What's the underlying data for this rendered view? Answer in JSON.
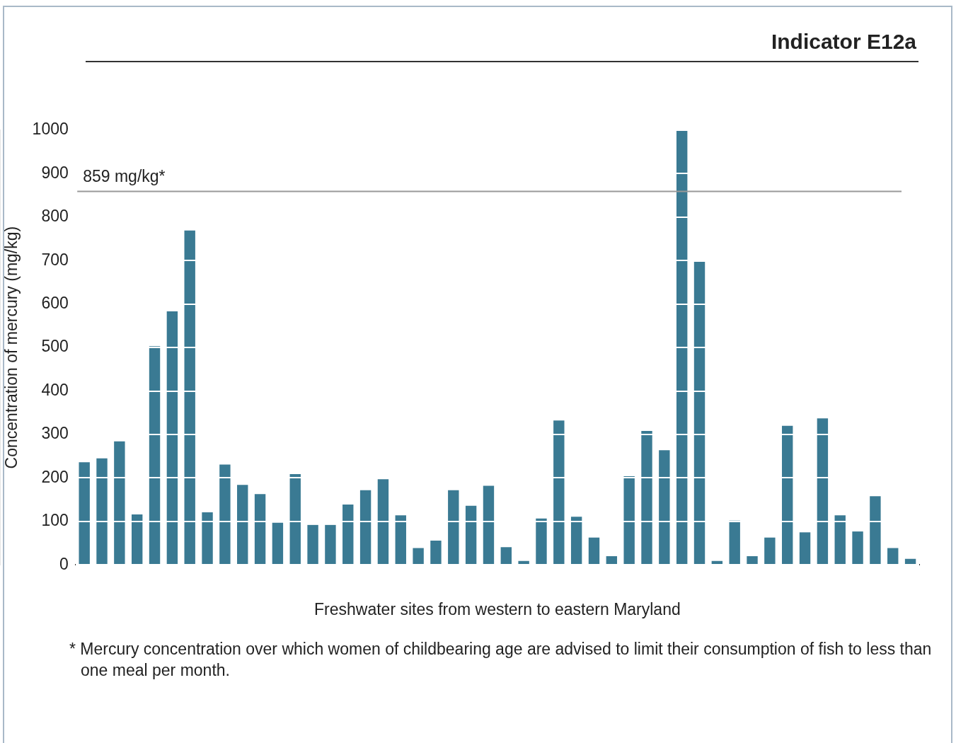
{
  "chart_data": {
    "type": "bar",
    "title": "Indicator E12a",
    "xlabel": "Freshwater sites from western to eastern Maryland",
    "ylabel": "Concentration of mercury (mg/kg)",
    "categories": [
      null,
      null,
      null,
      null,
      null,
      null,
      null,
      null,
      null,
      null,
      null,
      null,
      null,
      null,
      null,
      null,
      null,
      null,
      null,
      null,
      null,
      null,
      null,
      null,
      null,
      null,
      null,
      null,
      null,
      null,
      null,
      null,
      null,
      null,
      null,
      null,
      null,
      null,
      null,
      null,
      null,
      null,
      null,
      null,
      null,
      null,
      null,
      null
    ],
    "values": [
      236,
      245,
      284,
      116,
      503,
      583,
      769,
      121,
      231,
      184,
      163,
      97,
      209,
      92,
      92,
      139,
      172,
      197,
      114,
      39,
      56,
      172,
      136,
      182,
      41,
      9,
      107,
      332,
      111,
      63,
      20,
      204,
      308,
      264,
      1000,
      697,
      9,
      102,
      20,
      63,
      320,
      75,
      337,
      114,
      77,
      158,
      39,
      14
    ],
    "color": "#3a7a93",
    "ylim": [
      0,
      1000
    ],
    "yticks": [
      0,
      100,
      200,
      300,
      400,
      500,
      600,
      700,
      800,
      900,
      1000
    ],
    "grid": "y",
    "tick_labels": "y",
    "ref_lines": [
      {
        "axis": "y",
        "value": 859,
        "label": "859 mg/kg*",
        "color": "#999999"
      }
    ],
    "annotations": [
      "* Mercury concentration over which women of childbearing age are advised to limit their consumption of fish to less than one meal per month."
    ]
  }
}
